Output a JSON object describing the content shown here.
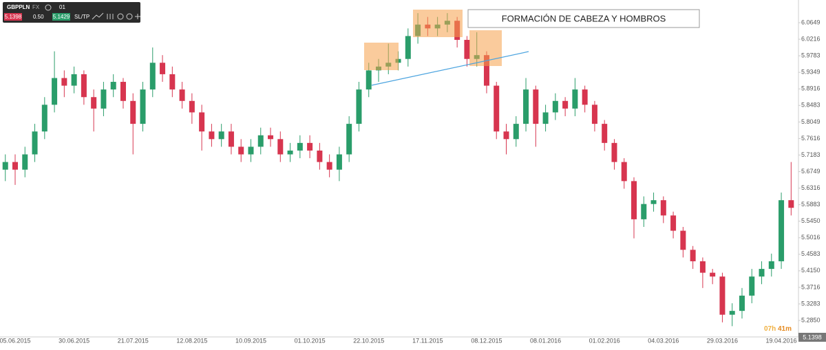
{
  "toolbar": {
    "symbol": "GBPPLN",
    "market": "FX",
    "timeframe": "01",
    "bid": "5.1398",
    "spread": "0.50",
    "ask": "5.1429",
    "sltp": "SL/TP"
  },
  "timer_hours": "07h",
  "timer_minutes": "41m",
  "price_tag": "5.1398",
  "annotation": "FORMACIÓN DE CABEZA Y HOMBROS",
  "chart_data": {
    "type": "candlestick",
    "up_color": "#2a9d6a",
    "down_color": "#d7354f",
    "grid": false,
    "categories": [
      null,
      "05.06.2015",
      null,
      null,
      null,
      null,
      null,
      "30.06.2015",
      null,
      null,
      null,
      null,
      null,
      "21.07.2015",
      null,
      null,
      null,
      null,
      null,
      "12.08.2015",
      null,
      null,
      null,
      null,
      null,
      "10.09.2015",
      null,
      null,
      null,
      null,
      null,
      "01.10.2015",
      null,
      null,
      null,
      null,
      null,
      "22.10.2015",
      null,
      null,
      null,
      null,
      null,
      "17.11.2015",
      null,
      null,
      null,
      null,
      null,
      "08.12.2015",
      null,
      null,
      null,
      null,
      null,
      "08.01.2016",
      null,
      null,
      null,
      null,
      null,
      "01.02.2016",
      null,
      null,
      null,
      null,
      null,
      "04.03.2016",
      null,
      null,
      null,
      null,
      null,
      "29.03.2016",
      null,
      null,
      null,
      null,
      null,
      "19.04.2016",
      null
    ],
    "open": [
      5.68,
      5.7,
      5.68,
      5.72,
      5.78,
      5.85,
      5.92,
      5.9,
      5.93,
      5.87,
      5.84,
      5.89,
      5.91,
      5.86,
      5.8,
      5.89,
      5.96,
      5.93,
      5.89,
      5.86,
      5.83,
      5.78,
      5.76,
      5.78,
      5.74,
      5.72,
      5.74,
      5.77,
      5.76,
      5.72,
      5.73,
      5.75,
      5.73,
      5.7,
      5.68,
      5.72,
      5.8,
      5.89,
      5.94,
      5.95,
      5.96,
      5.97,
      6.03,
      6.06,
      6.05,
      6.06,
      6.07,
      6.02,
      5.97,
      5.98,
      5.9,
      5.78,
      5.76,
      5.8,
      5.89,
      5.8,
      5.83,
      5.86,
      5.84,
      5.89,
      5.85,
      5.8,
      5.75,
      5.7,
      5.65,
      5.55,
      5.59,
      5.6,
      5.56,
      5.52,
      5.47,
      5.44,
      5.41,
      5.4,
      5.3,
      5.31,
      5.35,
      5.4,
      5.42,
      5.44,
      5.6
    ],
    "high": [
      5.72,
      5.72,
      5.74,
      5.8,
      5.87,
      5.99,
      5.94,
      5.95,
      5.94,
      5.89,
      5.91,
      5.93,
      5.92,
      5.88,
      5.91,
      6.0,
      5.98,
      5.95,
      5.91,
      5.88,
      5.85,
      5.8,
      5.8,
      5.8,
      5.76,
      5.76,
      5.79,
      5.79,
      5.78,
      5.75,
      5.77,
      5.77,
      5.75,
      5.72,
      5.74,
      5.82,
      5.91,
      5.96,
      5.97,
      6.01,
      5.99,
      6.05,
      6.09,
      6.08,
      6.08,
      6.09,
      6.08,
      6.03,
      6.04,
      5.99,
      5.91,
      5.8,
      5.82,
      5.92,
      5.9,
      5.85,
      5.88,
      5.87,
      5.92,
      5.9,
      5.86,
      5.81,
      5.76,
      5.71,
      5.66,
      5.61,
      5.62,
      5.61,
      5.57,
      5.53,
      5.48,
      5.45,
      5.42,
      5.41,
      5.33,
      5.37,
      5.42,
      5.44,
      5.46,
      5.62,
      5.7
    ],
    "low": [
      5.65,
      5.64,
      5.66,
      5.7,
      5.76,
      5.83,
      5.87,
      5.88,
      5.85,
      5.78,
      5.82,
      5.87,
      5.84,
      5.72,
      5.78,
      5.87,
      5.91,
      5.87,
      5.84,
      5.8,
      5.73,
      5.74,
      5.74,
      5.72,
      5.7,
      5.7,
      5.72,
      5.74,
      5.7,
      5.7,
      5.71,
      5.71,
      5.68,
      5.66,
      5.65,
      5.7,
      5.78,
      5.87,
      5.91,
      5.93,
      5.94,
      5.95,
      6.01,
      6.03,
      6.03,
      6.04,
      6.0,
      5.95,
      5.95,
      5.88,
      5.76,
      5.72,
      5.74,
      5.78,
      5.74,
      5.78,
      5.81,
      5.82,
      5.82,
      5.83,
      5.78,
      5.73,
      5.68,
      5.63,
      5.5,
      5.53,
      5.57,
      5.54,
      5.5,
      5.45,
      5.42,
      5.37,
      5.38,
      5.28,
      5.27,
      5.29,
      5.33,
      5.38,
      5.4,
      5.42,
      5.56
    ],
    "close": [
      5.7,
      5.68,
      5.72,
      5.78,
      5.85,
      5.92,
      5.9,
      5.93,
      5.87,
      5.84,
      5.89,
      5.91,
      5.86,
      5.8,
      5.89,
      5.96,
      5.93,
      5.89,
      5.86,
      5.83,
      5.78,
      5.76,
      5.78,
      5.74,
      5.72,
      5.74,
      5.77,
      5.76,
      5.72,
      5.73,
      5.75,
      5.73,
      5.7,
      5.68,
      5.72,
      5.8,
      5.89,
      5.94,
      5.95,
      5.96,
      5.97,
      6.03,
      6.06,
      6.05,
      6.06,
      6.07,
      6.02,
      5.97,
      5.98,
      5.9,
      5.78,
      5.76,
      5.8,
      5.89,
      5.8,
      5.83,
      5.86,
      5.84,
      5.89,
      5.85,
      5.8,
      5.75,
      5.7,
      5.65,
      5.55,
      5.59,
      5.6,
      5.56,
      5.52,
      5.47,
      5.44,
      5.41,
      5.4,
      5.3,
      5.31,
      5.35,
      5.4,
      5.42,
      5.44,
      5.6,
      5.58
    ],
    "ylim": [
      5.2418,
      6.1244
    ],
    "yticks": [
      6.0649,
      6.0216,
      5.9783,
      5.9349,
      5.8916,
      5.8483,
      5.8049,
      5.7616,
      5.7183,
      5.6749,
      5.6316,
      5.5883,
      {
        "value": 5.545,
        "label": "5.5450"
      },
      5.5016,
      5.4583,
      {
        "value": 5.415,
        "label": "5.4150"
      },
      5.3716,
      5.3283,
      {
        "value": 5.285,
        "label": "5.2850"
      }
    ]
  }
}
